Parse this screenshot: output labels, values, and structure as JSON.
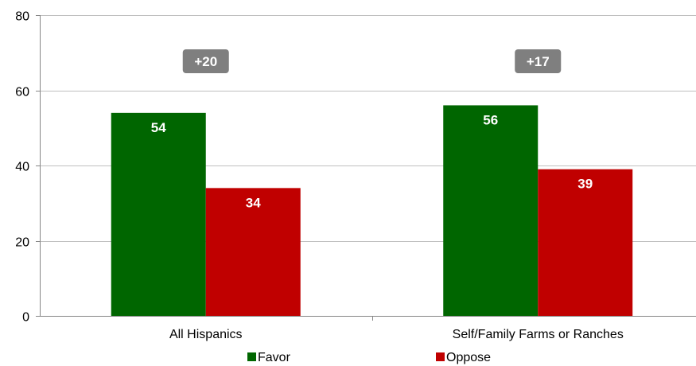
{
  "chart_data": {
    "type": "bar",
    "categories": [
      "All Hispanics",
      "Self/Family Farms or Ranches"
    ],
    "series": [
      {
        "name": "Favor",
        "values": [
          54,
          56
        ],
        "color": "#006600"
      },
      {
        "name": "Oppose",
        "values": [
          34,
          39
        ],
        "color": "#c00000"
      }
    ],
    "differences": [
      "+20",
      "+17"
    ],
    "difference_badge_color": "#7f7f7f",
    "ylim": [
      0,
      80
    ],
    "yticks": [
      0,
      20,
      40,
      60,
      80
    ],
    "grid": true,
    "gridline_color": "#bfbfbf",
    "legend_placement": "bottom",
    "title": "",
    "xlabel": "",
    "ylabel": ""
  }
}
